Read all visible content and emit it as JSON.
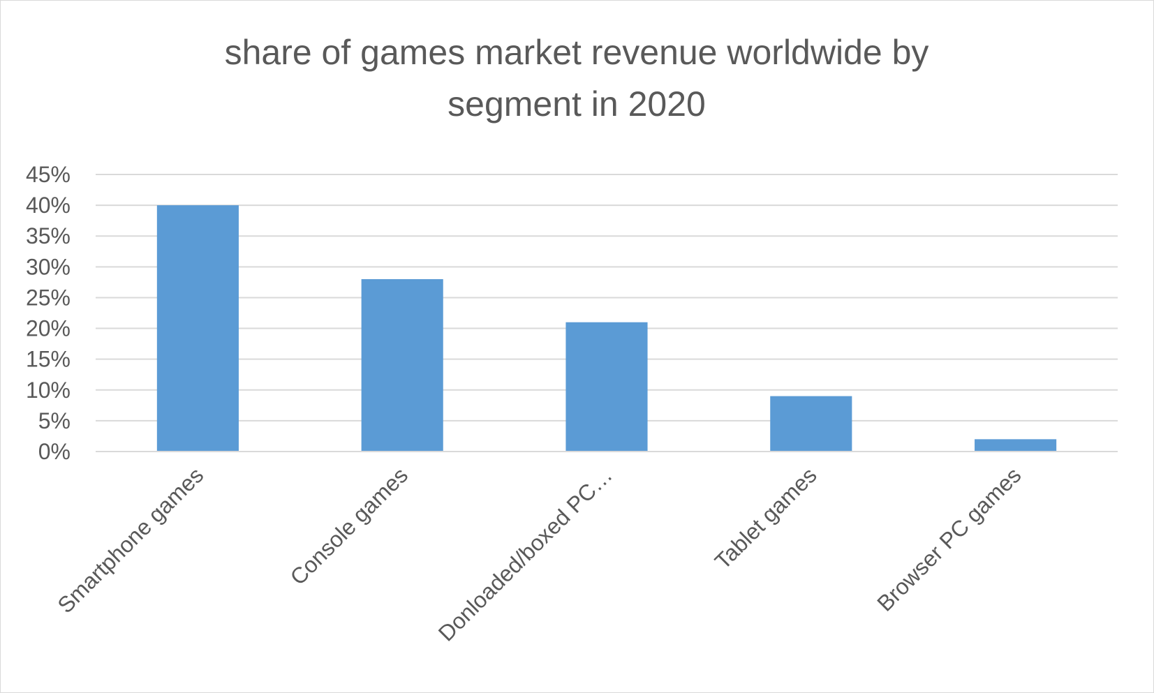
{
  "chart_data": {
    "type": "bar",
    "title_lines": [
      "share of games market revenue worldwide by",
      "segment in 2020"
    ],
    "categories": [
      "Smartphone games",
      "Console games",
      "Donloaded/boxed PC…",
      "Tablet games",
      "Browser PC games"
    ],
    "values": [
      40,
      28,
      21,
      9,
      2
    ],
    "yticks": [
      "0%",
      "5%",
      "10%",
      "15%",
      "20%",
      "25%",
      "30%",
      "35%",
      "40%",
      "45%"
    ],
    "ylim": [
      0,
      45
    ],
    "ytick_step": 5,
    "xlabel": "",
    "ylabel": "",
    "grid": true,
    "legend": "none",
    "bar_color": "#5b9bd5",
    "grid_color": "#d9d9d9",
    "text_color": "#595959"
  }
}
